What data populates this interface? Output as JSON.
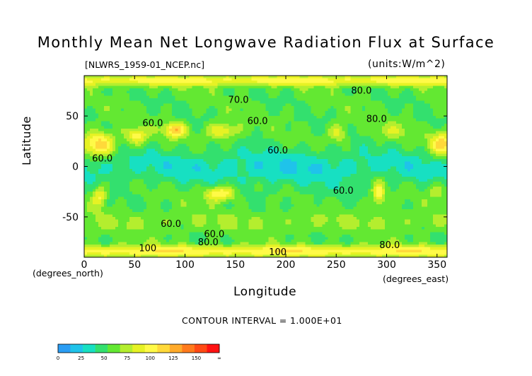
{
  "chart_data": {
    "type": "heatmap",
    "title": "Monthly Mean Net Longwave Radiation Flux at Surface",
    "file_label": "[NLWRS_1959-01_NCEP.nc]",
    "units_label": "(units:W/m^2)",
    "xlabel": "Longitude",
    "ylabel": "Latitude",
    "x_units_left": "(degrees_north)",
    "x_units_right": "(degrees_east)",
    "xlim": [
      0,
      360
    ],
    "ylim": [
      -90,
      90
    ],
    "x_ticks": [
      0,
      50,
      100,
      150,
      200,
      250,
      300,
      350
    ],
    "y_ticks": [
      50,
      0,
      -50
    ],
    "contour_interval_text": "CONTOUR INTERVAL = 1.000E+01",
    "contour_labels": [
      {
        "text": "60.0",
        "lon": 68,
        "lat": 40
      },
      {
        "text": "60.0",
        "lon": 172,
        "lat": 42
      },
      {
        "text": "60.0",
        "lon": 192,
        "lat": 13
      },
      {
        "text": "60.0",
        "lon": 18,
        "lat": 5
      },
      {
        "text": "60.0",
        "lon": 257,
        "lat": -27
      },
      {
        "text": "60.0",
        "lon": 86,
        "lat": -60
      },
      {
        "text": "60.0",
        "lon": 129,
        "lat": -70
      },
      {
        "text": "80.0",
        "lon": 290,
        "lat": 44
      },
      {
        "text": "80.0",
        "lon": 275,
        "lat": 72
      },
      {
        "text": "80.0",
        "lon": 123,
        "lat": -78
      },
      {
        "text": "80.0",
        "lon": 303,
        "lat": -81
      },
      {
        "text": "70.0",
        "lon": 153,
        "lat": 63
      },
      {
        "text": "100",
        "lon": 63,
        "lat": -84
      },
      {
        "text": "100",
        "lon": 192,
        "lat": -88
      }
    ],
    "colorbar": {
      "ticks": [
        "0",
        "25",
        "50",
        "75",
        "100",
        "125",
        "150",
        "∞"
      ],
      "colors": [
        "#2a9df4",
        "#1fc3ea",
        "#17e0c2",
        "#33e06e",
        "#63e832",
        "#b4ee2e",
        "#e6f224",
        "#fffa47",
        "#ffd93a",
        "#ffaa2a",
        "#ff7a1c",
        "#ff4a14",
        "#ff1212"
      ]
    }
  }
}
